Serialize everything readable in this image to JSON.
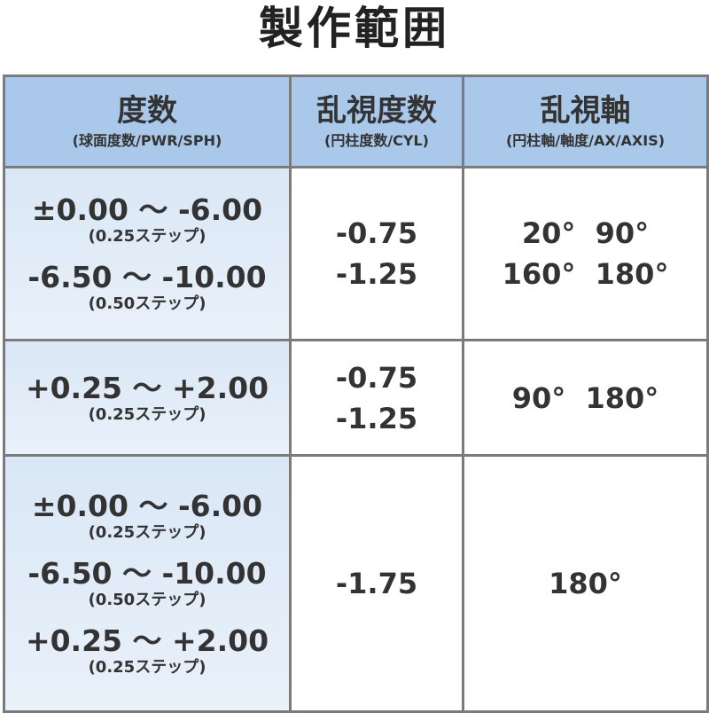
{
  "title": "製作範囲",
  "header": [
    {
      "main": "度数",
      "sub": "(球面度数/PWR/SPH)"
    },
    {
      "main": "乱視度数",
      "sub": "(円柱度数/CYL)"
    },
    {
      "main": "乱視軸",
      "sub": "(円柱軸/軸度/AX/AXIS)"
    }
  ],
  "rows": [
    {
      "sph": [
        {
          "range": "±0.00 ～ -6.00",
          "step": "(0.25ステップ)"
        },
        {
          "range": "-6.50 ～ -10.00",
          "step": "(0.50ステップ)"
        }
      ],
      "cyl": [
        "-0.75",
        "-1.25"
      ],
      "axis": [
        "20°  90°",
        "160°  180°"
      ]
    },
    {
      "sph": [
        {
          "range": "+0.25 ～ +2.00",
          "step": "(0.25ステップ)"
        }
      ],
      "cyl": [
        "-0.75",
        "-1.25"
      ],
      "axis": [
        "90°  180°"
      ]
    },
    {
      "sph": [
        {
          "range": "±0.00 ～ -6.00",
          "step": "(0.25ステップ)"
        },
        {
          "range": "-6.50 ～ -10.00",
          "step": "(0.50ステップ)"
        },
        {
          "range": "+0.25 ～ +2.00",
          "step": "(0.25ステップ)"
        }
      ],
      "cyl": [
        "-1.75"
      ],
      "axis": [
        "180°"
      ]
    }
  ],
  "colors": {
    "header_bg": "#a9c8ea",
    "sph_bg": "#dae7f6",
    "border": "#7b7b7b"
  }
}
